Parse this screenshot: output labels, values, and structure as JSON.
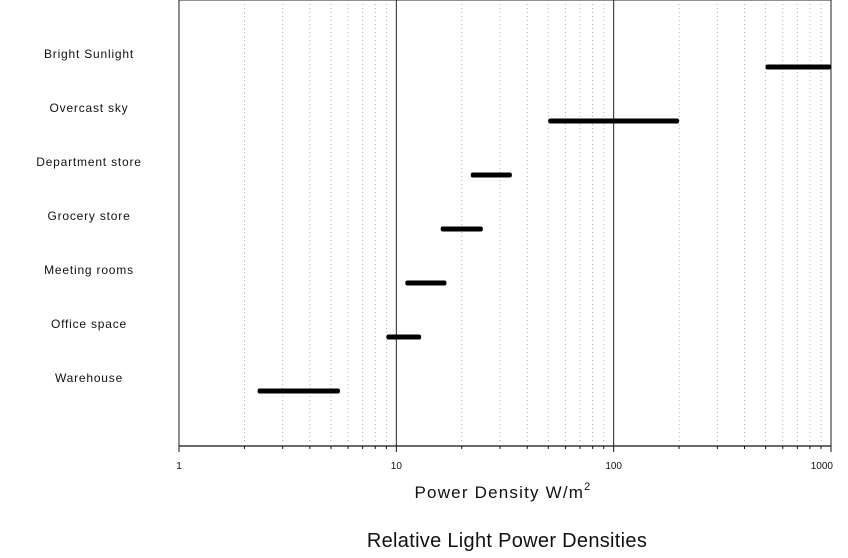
{
  "chart_data": {
    "type": "bar",
    "title": "Relative Light Power Densities",
    "xlabel": "Power Density W/m",
    "xlabel_superscript": "2",
    "ylabel": "",
    "x_scale": "log",
    "xlim": [
      1,
      1000
    ],
    "x_ticks": [
      1,
      10,
      100,
      1000
    ],
    "x_tick_labels": [
      "1",
      "10",
      "100",
      "1000"
    ],
    "grid": "major solid vertical lines at 10 and 100, dotted minor log gridlines",
    "legend": "none",
    "bar_color": "#000000",
    "categories": [
      "Bright Sunlight",
      "Overcast sky",
      "Department store",
      "Grocery store",
      "Meeting rooms",
      "Office space",
      "Warehouse"
    ],
    "ranges": [
      {
        "category": "Bright Sunlight",
        "min": 500,
        "max": 1000
      },
      {
        "category": "Overcast sky",
        "min": 50,
        "max": 200
      },
      {
        "category": "Department store",
        "min": 22,
        "max": 34
      },
      {
        "category": "Grocery store",
        "min": 16,
        "max": 25
      },
      {
        "category": "Meeting rooms",
        "min": 11,
        "max": 17
      },
      {
        "category": "Office space",
        "min": 9,
        "max": 13
      },
      {
        "category": "Warehouse",
        "min": 2.3,
        "max": 5.5
      }
    ]
  }
}
